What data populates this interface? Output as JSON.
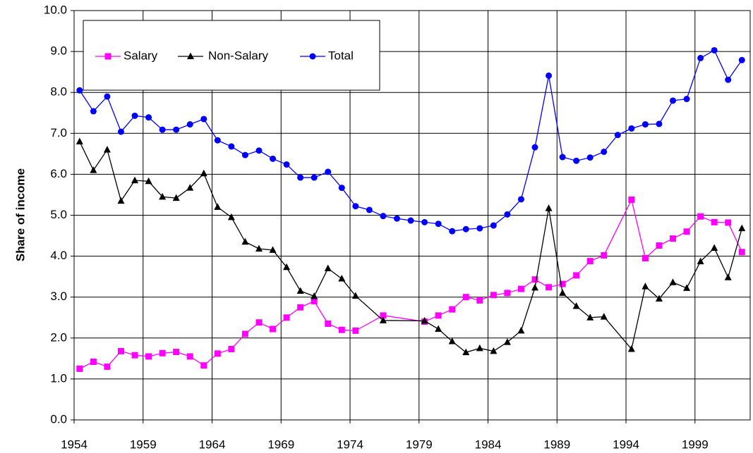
{
  "chart_data": {
    "type": "line",
    "ylabel": "Share of income",
    "xlim": [
      1954,
      2003
    ],
    "xticks": [
      1954,
      1959,
      1964,
      1969,
      1974,
      1979,
      1984,
      1989,
      1994,
      1999
    ],
    "ylim": [
      0,
      10
    ],
    "yticks": [
      {
        "value": 0,
        "label": "0.0"
      },
      {
        "value": 1,
        "label": "1.0"
      },
      {
        "value": 2,
        "label": "2.0"
      },
      {
        "value": 3,
        "label": "3.0"
      },
      {
        "value": 4,
        "label": "4.0"
      },
      {
        "value": 5,
        "label": "5.0"
      },
      {
        "value": 6,
        "label": "6.0"
      },
      {
        "value": 7,
        "label": "7.0"
      },
      {
        "value": 8,
        "label": "8.0"
      },
      {
        "value": 9,
        "label": "9.0"
      },
      {
        "value": 10,
        "label": "10.0"
      }
    ],
    "grid": true,
    "legend": "top-left",
    "series": [
      {
        "name": "Salary",
        "color": "#ff00ff",
        "marker": "square",
        "x": [
          1954.4,
          1955.4,
          1956.4,
          1957.4,
          1958.4,
          1959.4,
          1960.4,
          1961.4,
          1962.4,
          1963.4,
          1964.4,
          1965.4,
          1966.4,
          1967.4,
          1968.4,
          1969.4,
          1970.4,
          1971.4,
          1972.4,
          1973.4,
          1974.4,
          1976.4,
          1979.4,
          1980.4,
          1981.4,
          1982.4,
          1983.4,
          1984.4,
          1985.4,
          1986.4,
          1987.4,
          1988.4,
          1989.4,
          1990.4,
          1991.4,
          1992.4,
          1994.4,
          1995.4,
          1996.4,
          1997.4,
          1998.4,
          1999.4,
          2000.4,
          2001.4,
          2002.4
        ],
        "values": [
          1.25,
          1.42,
          1.3,
          1.68,
          1.58,
          1.55,
          1.63,
          1.66,
          1.55,
          1.33,
          1.62,
          1.73,
          2.1,
          2.38,
          2.22,
          2.5,
          2.75,
          2.9,
          2.35,
          2.2,
          2.18,
          2.55,
          2.4,
          2.55,
          2.7,
          3.0,
          2.92,
          3.05,
          3.1,
          3.2,
          3.43,
          3.24,
          3.32,
          3.53,
          3.88,
          4.02,
          5.38,
          3.95,
          4.26,
          4.43,
          4.6,
          4.97,
          4.83,
          4.82,
          4.1
        ]
      },
      {
        "name": "Non-Salary",
        "color": "#000000",
        "marker": "triangle",
        "x": [
          1954.4,
          1955.4,
          1956.4,
          1957.4,
          1958.4,
          1959.4,
          1960.4,
          1961.4,
          1962.4,
          1963.4,
          1964.4,
          1965.4,
          1966.4,
          1967.4,
          1968.4,
          1969.4,
          1970.4,
          1971.4,
          1972.4,
          1973.4,
          1974.4,
          1976.4,
          1979.4,
          1980.4,
          1981.4,
          1982.4,
          1983.4,
          1984.4,
          1985.4,
          1986.4,
          1987.4,
          1988.4,
          1989.4,
          1990.4,
          1991.4,
          1992.4,
          1994.4,
          1995.4,
          1996.4,
          1997.4,
          1998.4,
          1999.4,
          2000.4,
          2001.4,
          2002.4
        ],
        "values": [
          6.8,
          6.1,
          6.6,
          5.35,
          5.85,
          5.83,
          5.45,
          5.42,
          5.67,
          6.02,
          5.2,
          4.95,
          4.35,
          4.18,
          4.15,
          3.73,
          3.15,
          3.02,
          3.7,
          3.45,
          3.03,
          2.43,
          2.42,
          2.22,
          1.92,
          1.65,
          1.75,
          1.68,
          1.9,
          2.18,
          3.23,
          5.17,
          3.1,
          2.78,
          2.5,
          2.52,
          1.73,
          3.26,
          2.96,
          3.36,
          3.22,
          3.87,
          4.2,
          3.48,
          4.68
        ]
      },
      {
        "name": "Total",
        "color": "#0000ff",
        "marker": "circle",
        "x": [
          1954.4,
          1955.4,
          1956.4,
          1957.4,
          1958.4,
          1959.4,
          1960.4,
          1961.4,
          1962.4,
          1963.4,
          1964.4,
          1965.4,
          1966.4,
          1967.4,
          1968.4,
          1969.4,
          1970.4,
          1971.4,
          1972.4,
          1973.4,
          1974.4,
          1975.4,
          1976.4,
          1977.4,
          1978.4,
          1979.4,
          1980.4,
          1981.4,
          1982.4,
          1983.4,
          1984.4,
          1985.4,
          1986.4,
          1987.4,
          1988.4,
          1989.4,
          1990.4,
          1991.4,
          1992.4,
          1993.4,
          1994.4,
          1995.4,
          1996.4,
          1997.4,
          1998.4,
          1999.4,
          2000.4,
          2001.4,
          2002.4
        ],
        "values": [
          8.05,
          7.54,
          7.9,
          7.04,
          7.43,
          7.39,
          7.09,
          7.09,
          7.22,
          7.35,
          6.83,
          6.68,
          6.47,
          6.58,
          6.38,
          6.24,
          5.92,
          5.92,
          6.06,
          5.67,
          5.22,
          5.13,
          4.98,
          4.92,
          4.87,
          4.83,
          4.79,
          4.61,
          4.66,
          4.68,
          4.75,
          5.02,
          5.39,
          6.66,
          8.41,
          6.42,
          6.33,
          6.41,
          6.55,
          6.96,
          7.12,
          7.22,
          7.23,
          7.8,
          7.84,
          8.84,
          9.03,
          8.31,
          8.79
        ]
      }
    ]
  }
}
